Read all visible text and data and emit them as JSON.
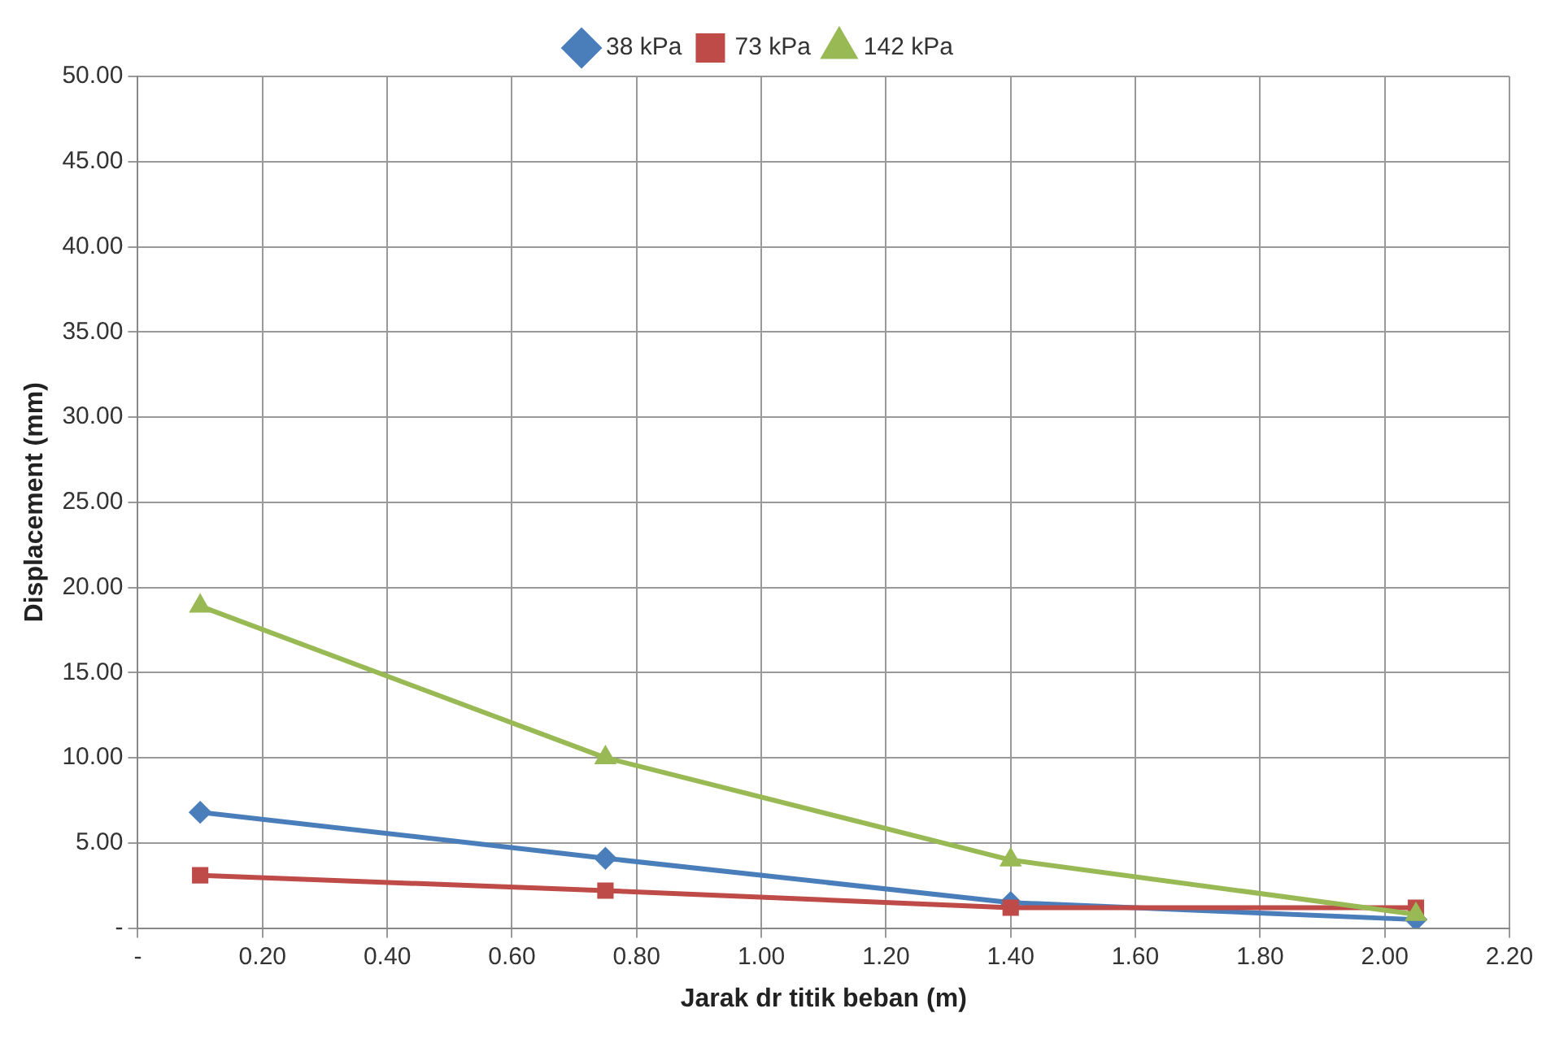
{
  "chart_data": {
    "type": "line",
    "xlabel": "Jarak dr titik beban (m)",
    "ylabel": "Displacement (mm)",
    "x": [
      0.1,
      0.75,
      1.4,
      2.05
    ],
    "series": [
      {
        "name": "38 kPa",
        "color": "#4a7ebb",
        "marker": "diamond",
        "values": [
          6.8,
          4.1,
          1.5,
          0.5
        ]
      },
      {
        "name": "73 kPa",
        "color": "#be4b48",
        "marker": "square",
        "values": [
          3.1,
          2.2,
          1.2,
          1.2
        ]
      },
      {
        "name": "142 kPa",
        "color": "#98b954",
        "marker": "triangle",
        "values": [
          18.9,
          10.0,
          4.0,
          0.8
        ]
      }
    ],
    "xlim": [
      0,
      2.2
    ],
    "xticks": [
      {
        "value": 0,
        "label": "-"
      },
      {
        "value": 0.2,
        "label": "0.20"
      },
      {
        "value": 0.4,
        "label": "0.40"
      },
      {
        "value": 0.6,
        "label": "0.60"
      },
      {
        "value": 0.8,
        "label": "0.80"
      },
      {
        "value": 1.0,
        "label": "1.00"
      },
      {
        "value": 1.2,
        "label": "1.20"
      },
      {
        "value": 1.4,
        "label": "1.40"
      },
      {
        "value": 1.6,
        "label": "1.60"
      },
      {
        "value": 1.8,
        "label": "1.80"
      },
      {
        "value": 2.0,
        "label": "2.00"
      },
      {
        "value": 2.2,
        "label": "2.20"
      }
    ],
    "ylim": [
      0,
      50
    ],
    "yticks": [
      {
        "value": 0,
        "label": "-"
      },
      {
        "value": 5,
        "label": "5.00"
      },
      {
        "value": 10,
        "label": "10.00"
      },
      {
        "value": 15,
        "label": "15.00"
      },
      {
        "value": 20,
        "label": "20.00"
      },
      {
        "value": 25,
        "label": "25.00"
      },
      {
        "value": 30,
        "label": "30.00"
      },
      {
        "value": 35,
        "label": "35.00"
      },
      {
        "value": 40,
        "label": "40.00"
      },
      {
        "value": 45,
        "label": "45.00"
      },
      {
        "value": 50,
        "label": "50.00"
      }
    ],
    "grid": true,
    "legend": "top",
    "line_style": "solid"
  }
}
